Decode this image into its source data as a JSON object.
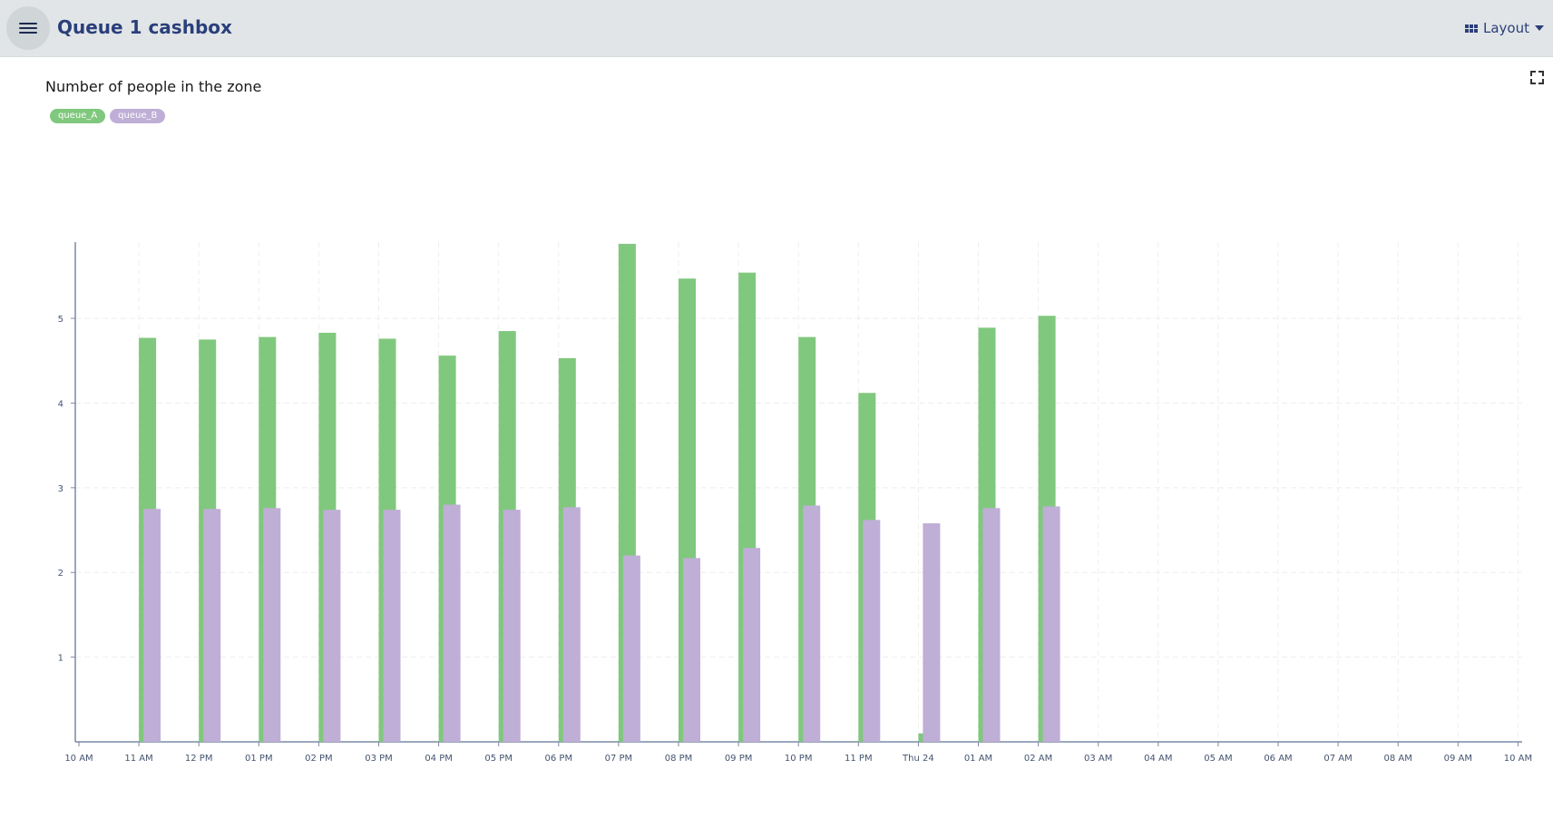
{
  "header": {
    "title": "Queue 1 cashbox",
    "menu_icon": "hamburger-icon",
    "layout_label": "Layout",
    "layout_icon": "grid-icon"
  },
  "panel": {
    "title": "Number of people in the zone",
    "fullscreen_icon": "expand-icon"
  },
  "chart_data": {
    "type": "bar",
    "title": "Number of people in the zone",
    "xlabel": "",
    "ylabel": "",
    "x_tick_labels": [
      "10 AM",
      "11 AM",
      "12 PM",
      "01 PM",
      "02 PM",
      "03 PM",
      "04 PM",
      "05 PM",
      "06 PM",
      "07 PM",
      "08 PM",
      "09 PM",
      "10 PM",
      "11 PM",
      "Thu 24",
      "01 AM",
      "02 AM",
      "03 AM",
      "04 AM",
      "05 AM",
      "06 AM",
      "07 AM",
      "08 AM",
      "09 AM",
      "10 AM"
    ],
    "y_ticks": [
      1,
      2,
      3,
      4,
      5
    ],
    "ylim": [
      0,
      5.9
    ],
    "grid": true,
    "legend_position": "top-left",
    "categories": [
      "11 AM",
      "12 PM",
      "01 PM",
      "02 PM",
      "03 PM",
      "04 PM",
      "05 PM",
      "06 PM",
      "07 PM",
      "08 PM",
      "09 PM",
      "10 PM",
      "11 PM",
      "Thu 24",
      "01 AM",
      "02 AM"
    ],
    "series": [
      {
        "name": "queue_A",
        "color": "#80c87d",
        "values": [
          4.77,
          4.75,
          4.78,
          4.83,
          4.76,
          4.56,
          4.85,
          4.53,
          5.88,
          5.47,
          5.54,
          4.78,
          4.12,
          0.1,
          4.89,
          5.03
        ]
      },
      {
        "name": "queue_B",
        "color": "#bfaed6",
        "values": [
          2.75,
          2.75,
          2.76,
          2.74,
          2.74,
          2.8,
          2.74,
          2.77,
          2.2,
          2.17,
          2.29,
          2.79,
          2.62,
          2.58,
          2.76,
          2.78
        ]
      }
    ]
  }
}
